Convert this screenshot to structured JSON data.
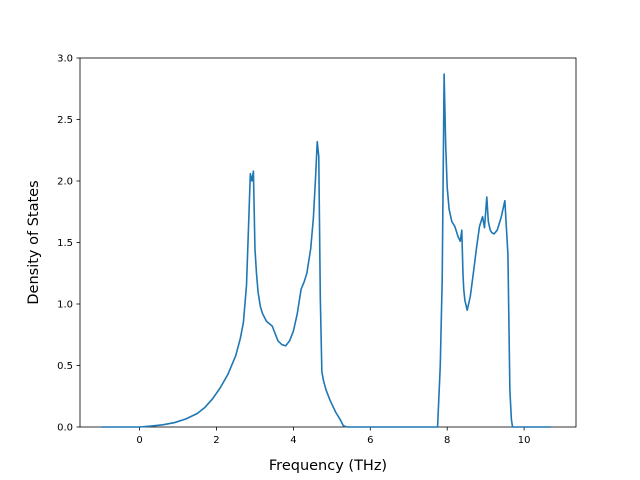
{
  "chart_data": {
    "type": "line",
    "title": "",
    "xlabel": "Frequency (THz)",
    "ylabel": "Density of States",
    "xlim": [
      -1.55,
      11.35
    ],
    "ylim": [
      0.0,
      3.0
    ],
    "x_ticks": [
      0,
      2,
      4,
      6,
      8,
      10
    ],
    "x_tick_labels": [
      "0",
      "2",
      "4",
      "6",
      "8",
      "10"
    ],
    "y_ticks": [
      0.0,
      0.5,
      1.0,
      1.5,
      2.0,
      2.5,
      3.0
    ],
    "y_tick_labels": [
      "0.0",
      "0.5",
      "1.0",
      "1.5",
      "2.0",
      "2.5",
      "3.0"
    ],
    "grid": false,
    "legend": "none",
    "series_color": "#1f77b4",
    "series": [
      {
        "x": [
          -1.0,
          -0.5,
          0.0,
          0.3,
          0.6,
          0.9,
          1.2,
          1.5,
          1.7,
          1.9,
          2.1,
          2.3,
          2.5,
          2.62,
          2.7,
          2.78,
          2.83,
          2.88,
          2.92,
          2.96,
          3.0,
          3.04,
          3.08,
          3.14,
          3.2,
          3.3,
          3.45,
          3.6,
          3.7,
          3.8,
          3.9,
          4.0,
          4.1,
          4.2,
          4.28,
          4.35,
          4.45,
          4.52,
          4.58,
          4.62,
          4.66,
          4.7,
          4.74,
          4.78,
          4.85,
          4.95,
          5.1,
          5.2,
          5.3,
          5.4,
          6.0,
          7.0,
          7.75,
          7.82,
          7.87,
          7.92,
          7.96,
          8.0,
          8.05,
          8.12,
          8.2,
          8.28,
          8.34,
          8.38,
          8.41,
          8.43,
          8.46,
          8.52,
          8.6,
          8.68,
          8.76,
          8.84,
          8.92,
          8.97,
          9.03,
          9.07,
          9.12,
          9.16,
          9.22,
          9.3,
          9.4,
          9.5,
          9.58,
          9.63,
          9.67,
          9.7,
          9.74,
          9.8,
          10.0,
          10.7
        ],
        "y": [
          0.0,
          0.0,
          0.0,
          0.008,
          0.018,
          0.035,
          0.065,
          0.11,
          0.16,
          0.23,
          0.32,
          0.43,
          0.58,
          0.72,
          0.85,
          1.15,
          1.6,
          2.06,
          2.0,
          2.08,
          1.45,
          1.25,
          1.1,
          0.98,
          0.92,
          0.86,
          0.82,
          0.7,
          0.67,
          0.66,
          0.7,
          0.78,
          0.92,
          1.12,
          1.18,
          1.25,
          1.45,
          1.7,
          2.05,
          2.32,
          2.2,
          1.05,
          0.45,
          0.38,
          0.3,
          0.22,
          0.12,
          0.07,
          0.01,
          0.0,
          0.0,
          0.0,
          0.0,
          0.5,
          1.2,
          2.87,
          2.3,
          1.95,
          1.77,
          1.67,
          1.63,
          1.55,
          1.51,
          1.6,
          1.25,
          1.12,
          1.03,
          0.95,
          1.06,
          1.25,
          1.45,
          1.63,
          1.71,
          1.62,
          1.87,
          1.67,
          1.6,
          1.58,
          1.57,
          1.6,
          1.7,
          1.84,
          1.4,
          0.3,
          0.06,
          0.0,
          0.0,
          0.0,
          0.0,
          0.0
        ]
      }
    ]
  }
}
